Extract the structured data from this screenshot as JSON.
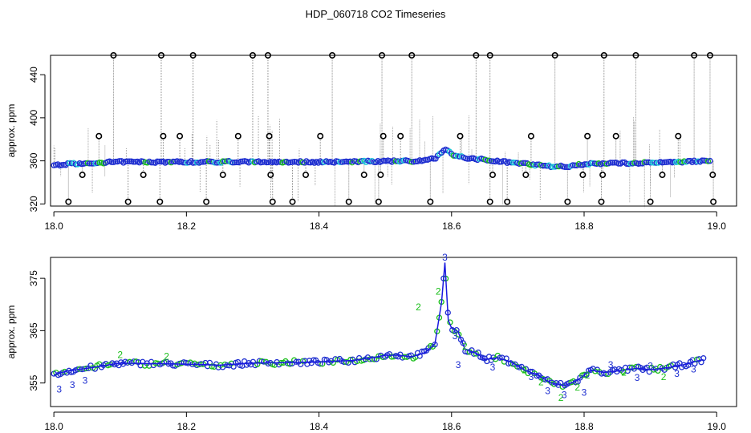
{
  "title": "HDP_060718  CO2 Timeseries",
  "colors": {
    "raw_point": "#000000",
    "raw_spike": "#8c8c8c",
    "main": "#1f2fd0",
    "flag2": "#1bbf1b",
    "cyan": "#18c9d6",
    "line": "#1a1adf"
  },
  "chart_data": [
    {
      "type": "scatter",
      "title": "HDP_060718  CO2 Timeseries",
      "ylabel": "approx. ppm",
      "xlabel": "",
      "xlim": [
        17.995,
        19.03
      ],
      "ylim": [
        318,
        458
      ],
      "xticks": [
        "18.0",
        "18.2",
        "18.4",
        "18.6",
        "18.8",
        "19.0"
      ],
      "yticks": [
        "320",
        "360",
        "400",
        "440"
      ],
      "grid": false,
      "baseline": [
        [
          18.0,
          356
        ],
        [
          18.02,
          357
        ],
        [
          18.05,
          358
        ],
        [
          18.1,
          359
        ],
        [
          18.15,
          359
        ],
        [
          18.2,
          359
        ],
        [
          18.3,
          359
        ],
        [
          18.4,
          359
        ],
        [
          18.5,
          359.5
        ],
        [
          18.55,
          360
        ],
        [
          18.575,
          362
        ],
        [
          18.585,
          368
        ],
        [
          18.59,
          372
        ],
        [
          18.6,
          366
        ],
        [
          18.62,
          363
        ],
        [
          18.65,
          361
        ],
        [
          18.7,
          358
        ],
        [
          18.75,
          355
        ],
        [
          18.78,
          355
        ],
        [
          18.8,
          357
        ],
        [
          18.85,
          358
        ],
        [
          18.9,
          358
        ],
        [
          18.95,
          359
        ],
        [
          18.99,
          360
        ]
      ],
      "outliers_high": [
        18.09,
        18.162,
        18.21,
        18.3,
        18.323,
        18.42,
        18.495,
        18.54,
        18.637,
        18.658,
        18.756,
        18.83,
        18.878,
        18.966,
        18.99
      ],
      "outliers_low": [
        18.022,
        18.112,
        18.16,
        18.23,
        18.33,
        18.36,
        18.445,
        18.49,
        18.568,
        18.658,
        18.684,
        18.775,
        18.826,
        18.9,
        18.995
      ],
      "outliers_mid_high": [
        18.068,
        18.165,
        18.19,
        18.278,
        18.325,
        18.402,
        18.497,
        18.523,
        18.613,
        18.72,
        18.805,
        18.848,
        18.942
      ],
      "outliers_mid_low": [
        18.043,
        18.135,
        18.255,
        18.327,
        18.38,
        18.468,
        18.493,
        18.662,
        18.712,
        18.798,
        18.828,
        18.918,
        18.994
      ],
      "outlier_levels": {
        "high": 458,
        "mid_high": 383,
        "mid_low": 347,
        "low": 322
      }
    },
    {
      "type": "line",
      "ylabel": "approx. ppm",
      "xlabel": "",
      "xlim": [
        17.995,
        19.03
      ],
      "ylim": [
        350.5,
        379
      ],
      "xticks": [
        "18.0",
        "18.2",
        "18.4",
        "18.6",
        "18.8",
        "19.0"
      ],
      "yticks": [
        "355",
        "365",
        "375"
      ],
      "grid": false,
      "series": [
        {
          "points": [
            [
              18.0,
              356.5
            ],
            [
              18.02,
              357.3
            ],
            [
              18.05,
              357.8
            ],
            [
              18.08,
              358.4
            ],
            [
              18.1,
              358.8
            ],
            [
              18.15,
              358.7
            ],
            [
              18.2,
              358.6
            ],
            [
              18.25,
              358.4
            ],
            [
              18.3,
              358.8
            ],
            [
              18.35,
              358.9
            ],
            [
              18.4,
              359.0
            ],
            [
              18.45,
              359.3
            ],
            [
              18.48,
              359.8
            ],
            [
              18.5,
              360.3
            ],
            [
              18.52,
              360.3
            ],
            [
              18.54,
              360.0
            ],
            [
              18.56,
              360.8
            ],
            [
              18.575,
              362.5
            ],
            [
              18.585,
              370.5
            ],
            [
              18.59,
              378.0
            ],
            [
              18.595,
              367.0
            ],
            [
              18.6,
              365.5
            ],
            [
              18.61,
              364.8
            ],
            [
              18.62,
              361.5
            ],
            [
              18.64,
              360.5
            ],
            [
              18.65,
              359.5
            ],
            [
              18.67,
              359.8
            ],
            [
              18.69,
              359.0
            ],
            [
              18.71,
              357.5
            ],
            [
              18.73,
              356.5
            ],
            [
              18.75,
              355.0
            ],
            [
              18.77,
              354.5
            ],
            [
              18.79,
              355.5
            ],
            [
              18.81,
              357.5
            ],
            [
              18.83,
              357.0
            ],
            [
              18.85,
              357.3
            ],
            [
              18.88,
              357.8
            ],
            [
              18.9,
              357.5
            ],
            [
              18.93,
              358.0
            ],
            [
              18.95,
              358.5
            ],
            [
              18.98,
              359.5
            ]
          ]
        }
      ],
      "markers": [
        {
          "label": "3",
          "x": 18.008,
          "y": 353.8
        },
        {
          "label": "3",
          "x": 18.028,
          "y": 354.6
        },
        {
          "label": "3",
          "x": 18.047,
          "y": 355.5
        },
        {
          "label": "2",
          "x": 18.1,
          "y": 360.4
        },
        {
          "label": "2",
          "x": 18.17,
          "y": 360.1
        },
        {
          "label": "2",
          "x": 18.55,
          "y": 369.5
        },
        {
          "label": "2",
          "x": 18.58,
          "y": 372.5
        },
        {
          "label": "3",
          "x": 18.59,
          "y": 379.0
        },
        {
          "label": "3",
          "x": 18.605,
          "y": 364.0
        },
        {
          "label": "2",
          "x": 18.62,
          "y": 362.0
        },
        {
          "label": "3",
          "x": 18.61,
          "y": 358.5
        },
        {
          "label": "3",
          "x": 18.662,
          "y": 358.0
        },
        {
          "label": "2",
          "x": 18.71,
          "y": 357.5
        },
        {
          "label": "2",
          "x": 18.735,
          "y": 355.2
        },
        {
          "label": "3",
          "x": 18.72,
          "y": 356.2
        },
        {
          "label": "3",
          "x": 18.745,
          "y": 353.5
        },
        {
          "label": "2",
          "x": 18.765,
          "y": 352.2
        },
        {
          "label": "3",
          "x": 18.77,
          "y": 352.7
        },
        {
          "label": "2",
          "x": 18.79,
          "y": 354.2
        },
        {
          "label": "3",
          "x": 18.8,
          "y": 353.2
        },
        {
          "label": "2",
          "x": 18.805,
          "y": 356.5
        },
        {
          "label": "3",
          "x": 18.84,
          "y": 358.5
        },
        {
          "label": "2",
          "x": 18.86,
          "y": 357.0
        },
        {
          "label": "3",
          "x": 18.88,
          "y": 356.0
        },
        {
          "label": "3",
          "x": 18.9,
          "y": 358.2
        },
        {
          "label": "2",
          "x": 18.92,
          "y": 356.2
        },
        {
          "label": "3",
          "x": 18.94,
          "y": 356.8
        },
        {
          "label": "3",
          "x": 18.965,
          "y": 357.6
        }
      ]
    }
  ]
}
